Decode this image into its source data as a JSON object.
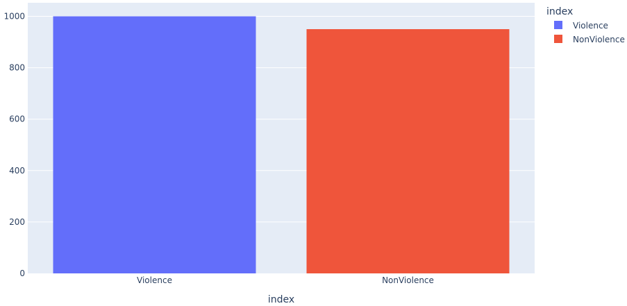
{
  "chart_data": {
    "type": "bar",
    "categories": [
      "Violence",
      "NonViolence"
    ],
    "values": [
      1000,
      950
    ],
    "colors": [
      "#636efa",
      "#ef553b"
    ],
    "xlabel": "index",
    "ylabel": "",
    "ylim": [
      0,
      1052.6
    ],
    "yticks": [
      0,
      200,
      400,
      600,
      800,
      1000
    ],
    "grid": true,
    "legend": {
      "title": "index",
      "placement": "top-right",
      "items": [
        {
          "label": "Violence",
          "color": "#636efa"
        },
        {
          "label": "NonViolence",
          "color": "#ef553b"
        }
      ]
    }
  }
}
